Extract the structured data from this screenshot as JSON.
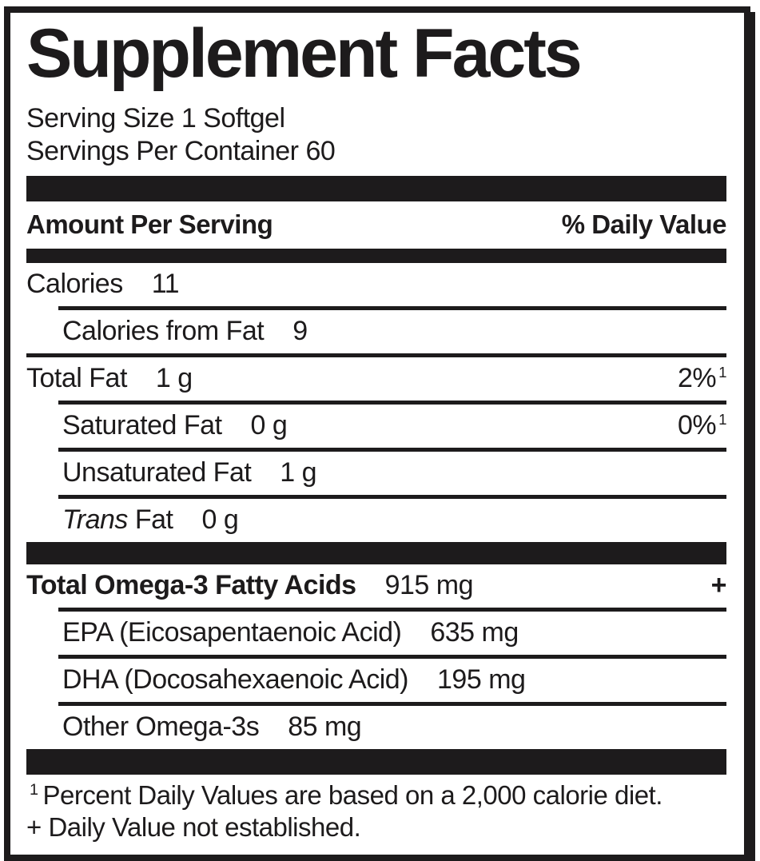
{
  "label": {
    "title": "Supplement Facts",
    "serving_size": "Serving Size 1 Softgel",
    "servings_per_container": "Servings Per Container 60",
    "columns": {
      "amount_per_serving": "Amount Per Serving",
      "percent_daily_value": "% Daily Value"
    },
    "rows": [
      {
        "name": "Calories",
        "amount": "11"
      },
      {
        "name": "Calories from Fat",
        "amount": "9"
      },
      {
        "name": "Total Fat",
        "amount": "1 g",
        "dv": "2%",
        "dv_sup": "1"
      },
      {
        "name": "Saturated Fat",
        "amount": "0 g",
        "dv": "0%",
        "dv_sup": "1"
      },
      {
        "name": "Unsaturated Fat",
        "amount": "1 g"
      },
      {
        "name_italic": "Trans",
        "name_rest": " Fat",
        "amount": "0 g"
      },
      {
        "name": "Total Omega-3 Fatty Acids",
        "amount": "915 mg",
        "dv": "+"
      },
      {
        "name": "EPA (Eicosapentaenoic Acid)",
        "amount": "635 mg"
      },
      {
        "name": "DHA (Docosahexaenoic Acid)",
        "amount": "195 mg"
      },
      {
        "name": "Other Omega-3s",
        "amount": "85 mg"
      }
    ],
    "footnotes": {
      "dv_sup": "1",
      "dv_text": "Percent Daily Values are based on a 2,000 calorie diet.",
      "not_established": "+ Daily Value not established."
    }
  },
  "colors": {
    "ink": "#1d1b1c",
    "background": "#ffffff"
  }
}
